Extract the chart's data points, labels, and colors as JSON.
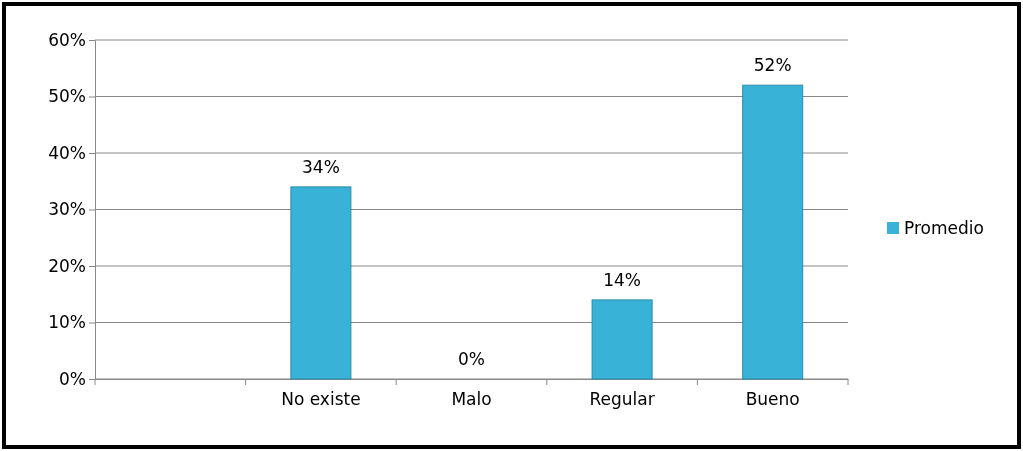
{
  "chart_data": {
    "type": "bar",
    "categories": [
      null,
      "No existe",
      "Malo",
      "Regular",
      "Bueno"
    ],
    "series": [
      {
        "name": "Promedio",
        "color": "#38b2d6",
        "values": [
          null,
          34,
          0,
          14,
          52
        ],
        "value_labels": [
          null,
          "34%",
          "0%",
          "14%",
          "52%"
        ]
      }
    ],
    "ylim": [
      0,
      60
    ],
    "yticks": [
      {
        "value": 0,
        "label": "0%"
      },
      {
        "value": 10,
        "label": "10%"
      },
      {
        "value": 20,
        "label": "20%"
      },
      {
        "value": 30,
        "label": "30%"
      },
      {
        "value": 40,
        "label": "40%"
      },
      {
        "value": 50,
        "label": "50%"
      },
      {
        "value": 60,
        "label": "60%"
      }
    ],
    "grid": "y",
    "legend": "right"
  }
}
